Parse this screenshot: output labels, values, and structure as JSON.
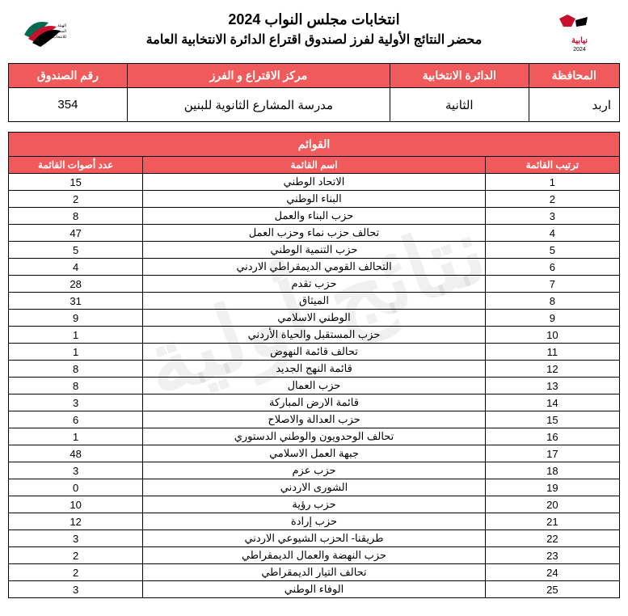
{
  "header": {
    "title_main": "انتخابات مجلس النواب 2024",
    "title_sub": "محضر النتائج الأولية لفرز لصندوق اقتراع الدائرة الانتخابية العامة",
    "right_logo_label": "نيابية 2024",
    "left_logo_label": "الهيئة المستقلة للانتخاب"
  },
  "watermark": "نتائج أولية",
  "info": {
    "headers": {
      "governorate": "المحافظة",
      "district": "الدائرة الانتخابية",
      "center": "مركز الاقتراع و الفرز",
      "box": "رقم الصندوق"
    },
    "values": {
      "governorate": "اربد",
      "district": "الثانية",
      "center": "مدرسة المشارع الثانوية  للبنين",
      "box": "354"
    }
  },
  "lists": {
    "title": "القوائم",
    "columns": {
      "order": "ترتيب القائمة",
      "name": "اسم القائمة",
      "votes": "عدد أصوات القائمة"
    },
    "rows": [
      {
        "order": "1",
        "name": "الاتحاد الوطني",
        "votes": "15"
      },
      {
        "order": "2",
        "name": "البناء الوطني",
        "votes": "2"
      },
      {
        "order": "3",
        "name": "حزب البناء والعمل",
        "votes": "8"
      },
      {
        "order": "4",
        "name": "تحالف حزب نماء وحزب العمل",
        "votes": "47"
      },
      {
        "order": "5",
        "name": "حزب التنمية الوطني",
        "votes": "5"
      },
      {
        "order": "6",
        "name": "التحالف القومي الديمقراطي الاردني",
        "votes": "4"
      },
      {
        "order": "7",
        "name": "حزب تقدم",
        "votes": "28"
      },
      {
        "order": "8",
        "name": "الميثاق",
        "votes": "31"
      },
      {
        "order": "9",
        "name": "الوطني الاسلامي",
        "votes": "9"
      },
      {
        "order": "10",
        "name": "حزب المستقبل والحياة الأردني",
        "votes": "1"
      },
      {
        "order": "11",
        "name": "تحالف قائمة النهوض",
        "votes": "1"
      },
      {
        "order": "12",
        "name": "قائمة النهج الجديد",
        "votes": "8"
      },
      {
        "order": "13",
        "name": "حزب العمال",
        "votes": "8"
      },
      {
        "order": "14",
        "name": "قائمة الارض المباركة",
        "votes": "3"
      },
      {
        "order": "15",
        "name": "حزب العدالة والاصلاح",
        "votes": "6"
      },
      {
        "order": "16",
        "name": "تحالف الوحدويون والوطني الدستوري",
        "votes": "1"
      },
      {
        "order": "17",
        "name": "جبهة العمل الاسلامي",
        "votes": "48"
      },
      {
        "order": "18",
        "name": "حزب عزم",
        "votes": "3"
      },
      {
        "order": "19",
        "name": "الشورى الاردني",
        "votes": "0"
      },
      {
        "order": "20",
        "name": "حزب رؤية",
        "votes": "10"
      },
      {
        "order": "21",
        "name": "حزب إرادة",
        "votes": "12"
      },
      {
        "order": "22",
        "name": "طريقنا- الحزب الشيوعي الاردني",
        "votes": "3"
      },
      {
        "order": "23",
        "name": "حزب النهضة والعمال الديمقراطي",
        "votes": "2"
      },
      {
        "order": "24",
        "name": "تحالف التيار الديمقراطي",
        "votes": "2"
      },
      {
        "order": "25",
        "name": "الوفاء الوطني",
        "votes": "3"
      }
    ]
  },
  "colors": {
    "header_bg": "#f05a5a",
    "header_fg": "#ffffff",
    "border": "#000000",
    "page_bg": "#ffffff",
    "watermark": "rgba(0,0,0,0.06)"
  }
}
